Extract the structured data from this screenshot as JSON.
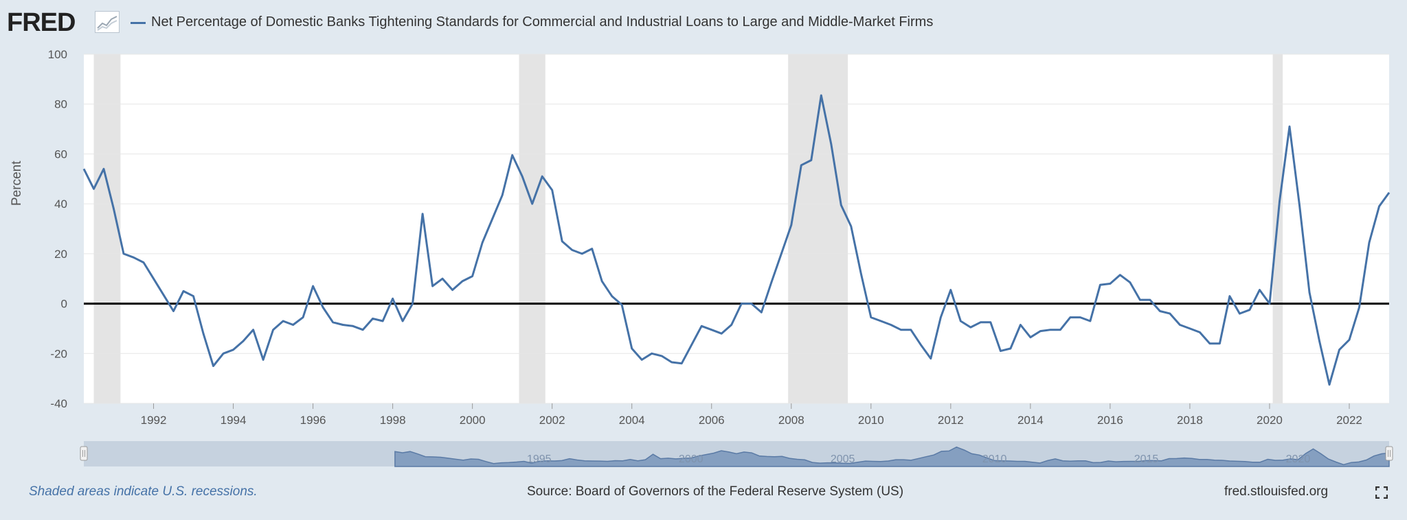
{
  "header": {
    "logo": "FRED",
    "legend": "Net Percentage of Domestic Banks Tightening Standards for Commercial and Industrial Loans to Large and Middle-Market Firms"
  },
  "chart_data": {
    "type": "line",
    "ylabel": "Percent",
    "ylim": [
      -40,
      100
    ],
    "yticks": [
      "100",
      "80",
      "60",
      "40",
      "20",
      "0",
      "-20",
      "-40"
    ],
    "xlim": [
      1990.25,
      2023.0
    ],
    "xticks": [
      "1992",
      "1994",
      "1996",
      "1998",
      "2000",
      "2002",
      "2004",
      "2006",
      "2008",
      "2010",
      "2012",
      "2014",
      "2016",
      "2018",
      "2020",
      "2022"
    ],
    "grid": true,
    "zero_line": true,
    "recessions": [
      [
        1990.5,
        1991.17
      ],
      [
        2001.17,
        2001.83
      ],
      [
        2007.92,
        2009.42
      ],
      [
        2020.08,
        2020.33
      ]
    ],
    "series": [
      {
        "name": "Net Percentage of Domestic Banks Tightening Standards for Commercial and Industrial Loans to Large and Middle-Market Firms",
        "color": "#4572a7",
        "x": [
          1990.25,
          1990.5,
          1990.75,
          1991.0,
          1991.25,
          1991.5,
          1991.75,
          1992.0,
          1992.25,
          1992.5,
          1992.75,
          1993.0,
          1993.25,
          1993.5,
          1993.75,
          1994.0,
          1994.25,
          1994.5,
          1994.75,
          1995.0,
          1995.25,
          1995.5,
          1995.75,
          1996.0,
          1996.25,
          1996.5,
          1996.75,
          1997.0,
          1997.25,
          1997.5,
          1997.75,
          1998.0,
          1998.25,
          1998.5,
          1998.75,
          1999.0,
          1999.25,
          1999.5,
          1999.75,
          2000.0,
          2000.25,
          2000.5,
          2000.75,
          2001.0,
          2001.25,
          2001.5,
          2001.75,
          2002.0,
          2002.25,
          2002.5,
          2002.75,
          2003.0,
          2003.25,
          2003.5,
          2003.75,
          2004.0,
          2004.25,
          2004.5,
          2004.75,
          2005.0,
          2005.25,
          2005.5,
          2005.75,
          2006.0,
          2006.25,
          2006.5,
          2006.75,
          2007.0,
          2007.25,
          2007.5,
          2007.75,
          2008.0,
          2008.25,
          2008.5,
          2008.75,
          2009.0,
          2009.25,
          2009.5,
          2009.75,
          2010.0,
          2010.25,
          2010.5,
          2010.75,
          2011.0,
          2011.25,
          2011.5,
          2011.75,
          2012.0,
          2012.25,
          2012.5,
          2012.75,
          2013.0,
          2013.25,
          2013.5,
          2013.75,
          2014.0,
          2014.25,
          2014.5,
          2014.75,
          2015.0,
          2015.25,
          2015.5,
          2015.75,
          2016.0,
          2016.25,
          2016.5,
          2016.75,
          2017.0,
          2017.25,
          2017.5,
          2017.75,
          2018.0,
          2018.25,
          2018.5,
          2018.75,
          2019.0,
          2019.25,
          2019.5,
          2019.75,
          2020.0,
          2020.25,
          2020.5,
          2020.75,
          2021.0,
          2021.25,
          2021.5,
          2021.75,
          2022.0,
          2022.25,
          2022.5,
          2022.75,
          2023.0
        ],
        "values": [
          54,
          46,
          54,
          38,
          20,
          18.5,
          16.5,
          10,
          3.5,
          -3,
          5,
          3,
          -12,
          -25,
          -20,
          -18.5,
          -15,
          -10.5,
          -22.5,
          -10.5,
          -7,
          -8.5,
          -5.5,
          7,
          -1.5,
          -7.5,
          -8.5,
          -9,
          -10.5,
          -6,
          -7,
          2,
          -7,
          0,
          36,
          7,
          10,
          5.5,
          9,
          11,
          24.5,
          34,
          43.5,
          59.5,
          51,
          40,
          51,
          45.5,
          25,
          21.5,
          20,
          22,
          9,
          3,
          -0.5,
          -18,
          -22.5,
          -20,
          -21,
          -23.5,
          -24,
          -16.5,
          -9,
          -10.5,
          -12,
          -8.5,
          0,
          0,
          -3.5,
          8.5,
          20,
          31.5,
          55.5,
          57.5,
          83.5,
          64,
          39.5,
          31,
          12,
          -5.5,
          -7,
          -8.5,
          -10.5,
          -10.5,
          -16.5,
          -22,
          -5.5,
          5.5,
          -7,
          -9.5,
          -7.5,
          -7.5,
          -19,
          -18,
          -8.5,
          -13.5,
          -11,
          -10.5,
          -10.5,
          -5.5,
          -5.5,
          -7,
          7.5,
          8,
          11.5,
          8.5,
          1.5,
          1.5,
          -3,
          -4,
          -8.5,
          -10,
          -11.5,
          -16,
          -16,
          3,
          -4,
          -2.5,
          5.5,
          0,
          41,
          71,
          39.5,
          4.5,
          -15,
          -32.5,
          -18.5,
          -14.5,
          -1.5,
          24.5,
          39,
          44.5
        ]
      }
    ]
  },
  "navigator": {
    "labels": [
      "1995",
      "2000",
      "2005",
      "2010",
      "2015",
      "2020"
    ]
  },
  "footer": {
    "recession_note": "Shaded areas indicate U.S. recessions.",
    "source": "Source: Board of Governors of the Federal Reserve System (US)",
    "site": "fred.stlouisfed.org"
  }
}
